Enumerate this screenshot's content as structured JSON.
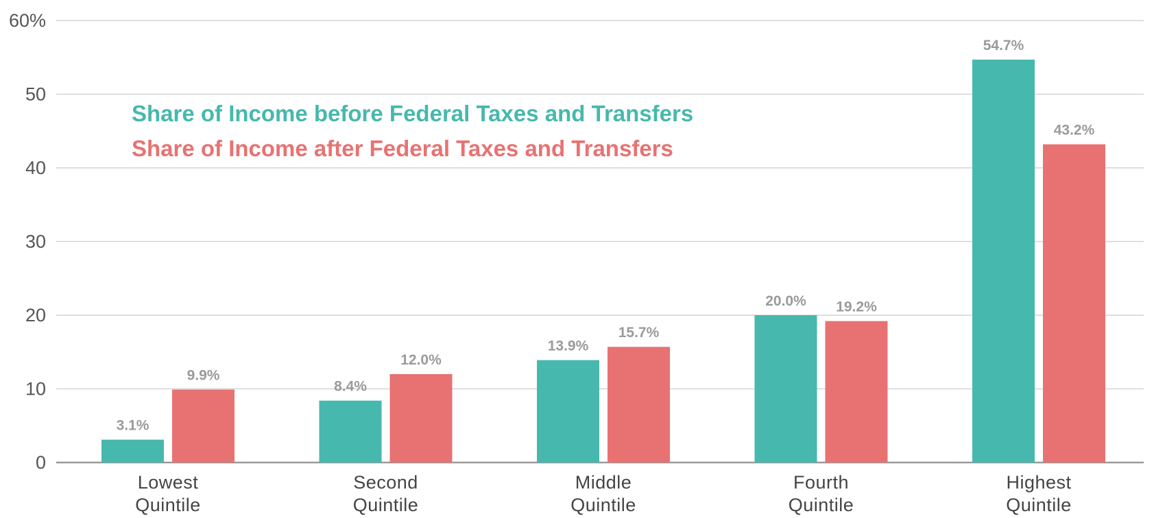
{
  "chart_data": {
    "type": "bar",
    "categories": [
      [
        "Lowest",
        "Quintile"
      ],
      [
        "Second",
        "Quintile"
      ],
      [
        "Middle",
        "Quintile"
      ],
      [
        "Fourth",
        "Quintile"
      ],
      [
        "Highest",
        "Quintile"
      ]
    ],
    "series": [
      {
        "name": "Share of Income before Federal Taxes and Transfers",
        "color": "#47b8ad",
        "values": [
          3.1,
          8.4,
          13.9,
          20.0,
          54.7
        ],
        "labels": [
          "3.1%",
          "8.4%",
          "13.9%",
          "20.0%",
          "54.7%"
        ]
      },
      {
        "name": "Share of Income after Federal Taxes and Transfers",
        "color": "#e87272",
        "values": [
          9.9,
          12.0,
          15.7,
          19.2,
          43.2
        ],
        "labels": [
          "9.9%",
          "12.0%",
          "15.7%",
          "19.2%",
          "43.2%"
        ]
      }
    ],
    "yticks": [
      0,
      10,
      20,
      30,
      40,
      50,
      60
    ],
    "ytick_labels": [
      "0",
      "10",
      "20",
      "30",
      "40",
      "50",
      "60%"
    ],
    "ylim": [
      0,
      60
    ],
    "grid": true,
    "legend_position": "top-left",
    "title": "",
    "xlabel": "",
    "ylabel": ""
  }
}
